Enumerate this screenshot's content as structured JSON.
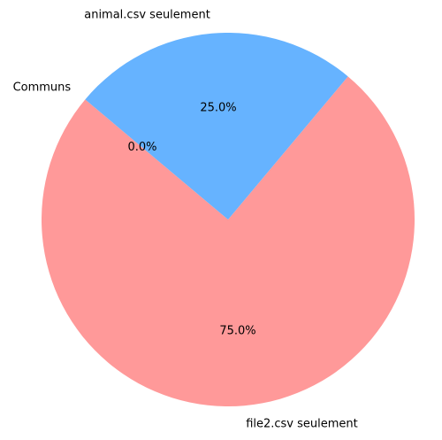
{
  "chart_data": {
    "type": "pie",
    "title": "",
    "slices": [
      {
        "label": "file2.csv seulement",
        "value": 75.0,
        "pct_label": "75.0%",
        "color": "#ff9999"
      },
      {
        "label": "animal.csv seulement",
        "value": 25.0,
        "pct_label": "25.0%",
        "color": "#66b3ff"
      },
      {
        "label": "Communs",
        "value": 0.0,
        "pct_label": "0.0%",
        "color": "#99ff99"
      }
    ],
    "start_angle_deg": 140,
    "direction": "counterclockwise",
    "legend": "none"
  }
}
